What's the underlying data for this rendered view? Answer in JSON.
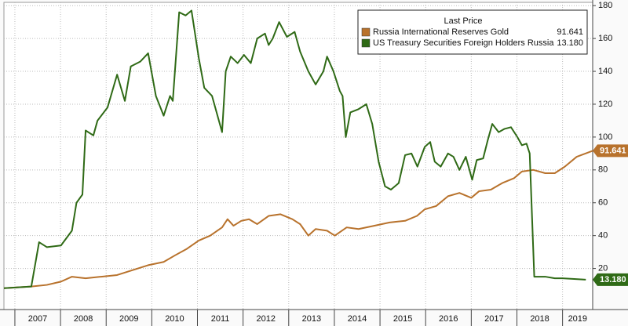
{
  "chart_data": {
    "type": "line",
    "legend_title": "Last Price",
    "xlim": [
      2006.76,
      2019.66
    ],
    "xticks": [
      2007,
      2008,
      2009,
      2010,
      2011,
      2012,
      2013,
      2014,
      2015,
      2016,
      2017,
      2018,
      2019
    ],
    "ylim": [
      -5,
      182
    ],
    "yticks": [
      20,
      40,
      60,
      80,
      100,
      120,
      140,
      160,
      180
    ],
    "grid": true,
    "legend": "upper right",
    "series": [
      {
        "name": "Russia International Reserves Gold",
        "color": "#b8722c",
        "last_label": "91.641",
        "x": [
          2006.76,
          2007.36,
          2007.7,
          2008.01,
          2008.25,
          2008.55,
          2008.89,
          2009.24,
          2009.58,
          2009.92,
          2010.26,
          2010.51,
          2010.77,
          2011.03,
          2011.28,
          2011.54,
          2011.66,
          2011.79,
          2011.96,
          2012.13,
          2012.31,
          2012.56,
          2012.82,
          2013.08,
          2013.25,
          2013.43,
          2013.59,
          2013.84,
          2014.01,
          2014.27,
          2014.53,
          2014.87,
          2015.21,
          2015.55,
          2015.81,
          2015.98,
          2016.23,
          2016.49,
          2016.74,
          2017.0,
          2017.17,
          2017.43,
          2017.68,
          2017.94,
          2018.11,
          2018.36,
          2018.62,
          2018.83,
          2019.05,
          2019.31,
          2019.66
        ],
        "values": [
          8,
          9,
          10,
          12,
          15,
          14,
          15,
          16,
          19,
          22,
          24,
          28,
          32,
          37,
          40,
          45,
          50,
          46,
          49,
          50,
          47,
          52,
          53,
          50,
          47,
          40,
          44,
          43,
          40,
          45,
          44,
          46,
          48,
          49,
          52,
          56,
          58,
          64,
          66,
          63,
          67,
          68,
          72,
          75,
          79,
          80,
          78,
          78,
          82,
          88,
          91.641
        ]
      },
      {
        "name": "US Treasury Securities Foreign Holders Russia",
        "color": "#2f6a16",
        "last_label": "13.180",
        "x": [
          2006.76,
          2007.36,
          2007.53,
          2007.7,
          2008.01,
          2008.25,
          2008.35,
          2008.48,
          2008.55,
          2008.72,
          2008.81,
          2009.03,
          2009.24,
          2009.41,
          2009.54,
          2009.75,
          2009.92,
          2010.09,
          2010.26,
          2010.4,
          2010.46,
          2010.6,
          2010.74,
          2010.87,
          2011.03,
          2011.15,
          2011.32,
          2011.54,
          2011.62,
          2011.73,
          2011.88,
          2012.02,
          2012.17,
          2012.31,
          2012.48,
          2012.56,
          2012.65,
          2012.79,
          2012.96,
          2013.13,
          2013.25,
          2013.43,
          2013.59,
          2013.76,
          2013.84,
          2013.98,
          2014.12,
          2014.18,
          2014.25,
          2014.35,
          2014.53,
          2014.7,
          2014.83,
          2014.97,
          2015.11,
          2015.24,
          2015.41,
          2015.55,
          2015.69,
          2015.82,
          2015.98,
          2016.1,
          2016.2,
          2016.33,
          2016.49,
          2016.61,
          2016.74,
          2016.88,
          2017.02,
          2017.12,
          2017.26,
          2017.36,
          2017.46,
          2017.6,
          2017.73,
          2017.87,
          2018.01,
          2018.11,
          2018.21,
          2018.28,
          2018.38,
          2018.62,
          2018.83,
          2019.0,
          2019.51
        ],
        "values": [
          8,
          9,
          36,
          33,
          34,
          43,
          60,
          65,
          104,
          101,
          110,
          118,
          138,
          122,
          143,
          146,
          151,
          125,
          113,
          125,
          122,
          176,
          174,
          177,
          148,
          130,
          125,
          103,
          140,
          149,
          145,
          150,
          145,
          160,
          163,
          156,
          160,
          170,
          161,
          164,
          152,
          140,
          132,
          140,
          149,
          140,
          128,
          125,
          100,
          115,
          117,
          120,
          108,
          85,
          70,
          68,
          72,
          89,
          90,
          82,
          94,
          97,
          85,
          82,
          90,
          88,
          80,
          88,
          74,
          86,
          87,
          98,
          108,
          103,
          105,
          106,
          100,
          95,
          96,
          90,
          15,
          15,
          14,
          14,
          13.18
        ]
      }
    ]
  }
}
